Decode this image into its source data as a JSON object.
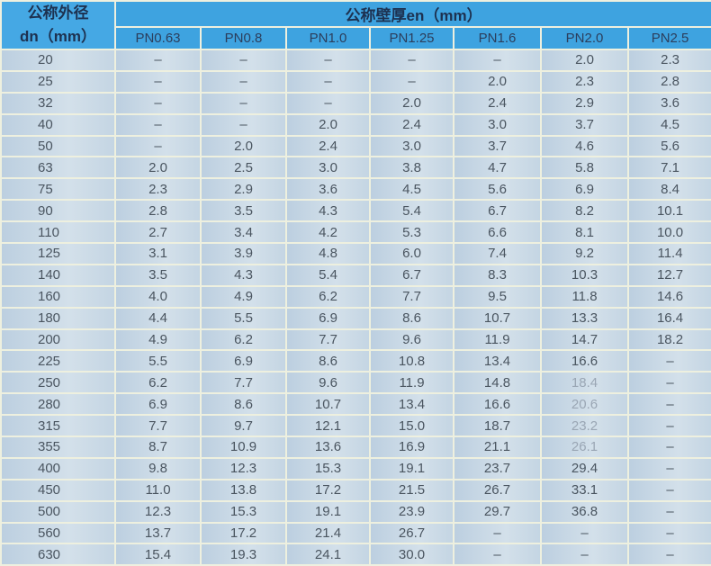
{
  "header": {
    "dn_label_line1": "公称外径",
    "dn_label_line2": "dn（mm）",
    "group_label": "公称壁厚en（mm）",
    "columns": [
      "PN0.63",
      "PN0.8",
      "PN1.0",
      "PN1.25",
      "PN1.6",
      "PN2.0",
      "PN2.5"
    ]
  },
  "rows": [
    [
      "20",
      "–",
      "–",
      "–",
      "–",
      "–",
      "2.0",
      "2.3"
    ],
    [
      "25",
      "–",
      "–",
      "–",
      "–",
      "2.0",
      "2.3",
      "2.8"
    ],
    [
      "32",
      "–",
      "–",
      "–",
      "2.0",
      "2.4",
      "2.9",
      "3.6"
    ],
    [
      "40",
      "–",
      "–",
      "2.0",
      "2.4",
      "3.0",
      "3.7",
      "4.5"
    ],
    [
      "50",
      "–",
      "2.0",
      "2.4",
      "3.0",
      "3.7",
      "4.6",
      "5.6"
    ],
    [
      "63",
      "2.0",
      "2.5",
      "3.0",
      "3.8",
      "4.7",
      "5.8",
      "7.1"
    ],
    [
      "75",
      "2.3",
      "2.9",
      "3.6",
      "4.5",
      "5.6",
      "6.9",
      "8.4"
    ],
    [
      "90",
      "2.8",
      "3.5",
      "4.3",
      "5.4",
      "6.7",
      "8.2",
      "10.1"
    ],
    [
      "110",
      "2.7",
      "3.4",
      "4.2",
      "5.3",
      "6.6",
      "8.1",
      "10.0"
    ],
    [
      "125",
      "3.1",
      "3.9",
      "4.8",
      "6.0",
      "7.4",
      "9.2",
      "11.4"
    ],
    [
      "140",
      "3.5",
      "4.3",
      "5.4",
      "6.7",
      "8.3",
      "10.3",
      "12.7"
    ],
    [
      "160",
      "4.0",
      "4.9",
      "6.2",
      "7.7",
      "9.5",
      "11.8",
      "14.6"
    ],
    [
      "180",
      "4.4",
      "5.5",
      "6.9",
      "8.6",
      "10.7",
      "13.3",
      "16.4"
    ],
    [
      "200",
      "4.9",
      "6.2",
      "7.7",
      "9.6",
      "11.9",
      "14.7",
      "18.2"
    ],
    [
      "225",
      "5.5",
      "6.9",
      "8.6",
      "10.8",
      "13.4",
      "16.6",
      "–"
    ],
    [
      "250",
      "6.2",
      "7.7",
      "9.6",
      "11.9",
      "14.8",
      "18.4",
      "–"
    ],
    [
      "280",
      "6.9",
      "8.6",
      "10.7",
      "13.4",
      "16.6",
      "20.6",
      "–"
    ],
    [
      "315",
      "7.7",
      "9.7",
      "12.1",
      "15.0",
      "18.7",
      "23.2",
      "–"
    ],
    [
      "355",
      "8.7",
      "10.9",
      "13.6",
      "16.9",
      "21.1",
      "26.1",
      "–"
    ],
    [
      "400",
      "9.8",
      "12.3",
      "15.3",
      "19.1",
      "23.7",
      "29.4",
      "–"
    ],
    [
      "450",
      "11.0",
      "13.8",
      "17.2",
      "21.5",
      "26.7",
      "33.1",
      "–"
    ],
    [
      "500",
      "12.3",
      "15.3",
      "19.1",
      "23.9",
      "29.7",
      "36.8",
      "–"
    ],
    [
      "560",
      "13.7",
      "17.2",
      "21.4",
      "26.7",
      "–",
      "–",
      "–"
    ],
    [
      "630",
      "15.4",
      "19.3",
      "24.1",
      "30.0",
      "–",
      "–",
      "–"
    ]
  ]
}
